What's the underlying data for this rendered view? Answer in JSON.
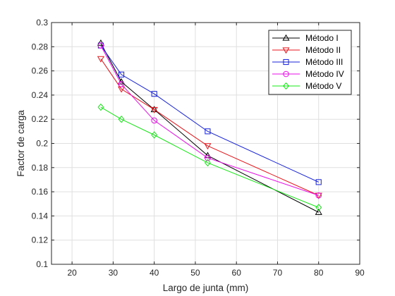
{
  "chart_data": {
    "type": "line",
    "title": "",
    "xlabel": "Largo de junta (mm)",
    "ylabel": "Factor de carga",
    "xlim": [
      15,
      90
    ],
    "ylim": [
      0.1,
      0.3
    ],
    "xticks": [
      20,
      30,
      40,
      50,
      60,
      70,
      80,
      90
    ],
    "yticks": [
      0.1,
      0.12,
      0.14,
      0.16,
      0.18,
      0.2,
      0.22,
      0.24,
      0.26,
      0.28,
      0.3
    ],
    "grid": true,
    "legend_position": "top-right",
    "x": [
      27,
      32,
      40,
      53,
      80
    ],
    "series": [
      {
        "name": "Método I",
        "color": "#000000",
        "marker": "triangle-up",
        "values": [
          0.283,
          0.251,
          0.228,
          0.19,
          0.143
        ]
      },
      {
        "name": "Método II",
        "color": "#e8161c",
        "marker": "triangle-down",
        "values": [
          0.27,
          0.245,
          0.228,
          0.198,
          0.157
        ]
      },
      {
        "name": "Método III",
        "color": "#1520d8",
        "marker": "square",
        "values": [
          0.281,
          0.257,
          0.241,
          0.21,
          0.168
        ]
      },
      {
        "name": "Método IV",
        "color": "#e80ee8",
        "marker": "circle",
        "values": [
          0.281,
          0.249,
          0.219,
          0.188,
          0.157
        ]
      },
      {
        "name": "Método V",
        "color": "#17e817",
        "marker": "diamond",
        "values": [
          0.23,
          0.22,
          0.207,
          0.184,
          0.147
        ]
      }
    ]
  }
}
